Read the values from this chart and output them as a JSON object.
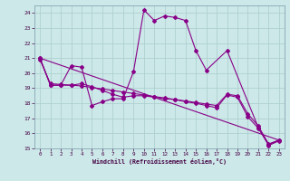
{
  "xlabel": "Windchill (Refroidissement éolien,°C)",
  "background_color": "#cce8e8",
  "grid_color": "#aacccc",
  "line_color": "#880088",
  "xlim": [
    -0.5,
    23.5
  ],
  "ylim": [
    15,
    24.5
  ],
  "yticks": [
    15,
    16,
    17,
    18,
    19,
    20,
    21,
    22,
    23,
    24
  ],
  "xticks": [
    0,
    1,
    2,
    3,
    4,
    5,
    6,
    7,
    8,
    9,
    10,
    11,
    12,
    13,
    14,
    15,
    16,
    17,
    18,
    19,
    20,
    21,
    22,
    23
  ],
  "line1_x": [
    0,
    1,
    2,
    3,
    4,
    5,
    6,
    7,
    8,
    9,
    10,
    11,
    12,
    13,
    14,
    15,
    16,
    18,
    21,
    22,
    23
  ],
  "line1_y": [
    21.0,
    19.2,
    19.2,
    20.5,
    20.4,
    17.85,
    18.1,
    18.3,
    18.3,
    20.1,
    24.2,
    23.5,
    23.8,
    23.7,
    23.5,
    21.5,
    20.2,
    21.5,
    16.4,
    15.2,
    15.5
  ],
  "line2_x": [
    0,
    1,
    2,
    3,
    4,
    5,
    6,
    7,
    8,
    9,
    10,
    11,
    12,
    13,
    14,
    15,
    16,
    17,
    18,
    19,
    20,
    21,
    22,
    23
  ],
  "line2_y": [
    21.0,
    19.2,
    19.2,
    19.2,
    19.3,
    19.1,
    18.85,
    18.6,
    18.4,
    18.5,
    18.5,
    18.4,
    18.3,
    18.25,
    18.1,
    18.0,
    17.85,
    17.7,
    18.55,
    18.4,
    17.1,
    16.35,
    15.25,
    15.55
  ],
  "line3_x": [
    0,
    1,
    2,
    3,
    4,
    5,
    6,
    7,
    8,
    9,
    10,
    11,
    12,
    13,
    14,
    15,
    16,
    17,
    18,
    19,
    20,
    21,
    22,
    23
  ],
  "line3_y": [
    20.9,
    19.3,
    19.25,
    19.2,
    19.15,
    19.05,
    18.95,
    18.85,
    18.75,
    18.65,
    18.55,
    18.45,
    18.35,
    18.25,
    18.15,
    18.05,
    17.95,
    17.85,
    18.6,
    18.5,
    17.3,
    16.5,
    15.3,
    15.55
  ],
  "line4_x": [
    0,
    23
  ],
  "line4_y": [
    21.0,
    15.55
  ]
}
